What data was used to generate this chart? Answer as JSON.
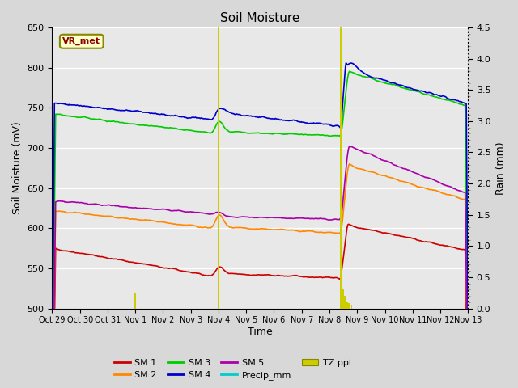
{
  "title": "Soil Moisture",
  "xlabel": "Time",
  "ylabel_left": "Soil Moisture (mV)",
  "ylabel_right": "Rain (mm)",
  "ylim_left": [
    500,
    850
  ],
  "ylim_right": [
    0.0,
    4.5
  ],
  "fig_bg_color": "#d8d8d8",
  "plot_bg_color": "#e8e8e8",
  "annotation_text": "VR_met",
  "colors": {
    "SM1": "#cc0000",
    "SM2": "#ff8800",
    "SM3": "#00cc00",
    "SM4": "#0000cc",
    "SM5": "#aa00aa",
    "Precip_mm": "#00cccc",
    "TZ_ppt": "#cccc00"
  },
  "legend_labels": [
    "SM 1",
    "SM 2",
    "SM 3",
    "SM 4",
    "SM 5",
    "Precip_mm",
    "TZ ppt"
  ],
  "x_tick_labels": [
    "Oct 29",
    "Oct 30",
    "Oct 31",
    "Nov 1",
    "Nov 2",
    "Nov 3",
    "Nov 4",
    "Nov 5",
    "Nov 6",
    "Nov 7",
    "Nov 8",
    "Nov 9",
    "Nov 10",
    "Nov 11",
    "Nov 12",
    "Nov 13"
  ],
  "yticks_left": [
    500,
    550,
    600,
    650,
    700,
    750,
    800,
    850
  ],
  "yticks_right": [
    0.0,
    0.5,
    1.0,
    1.5,
    2.0,
    2.5,
    3.0,
    3.5,
    4.0,
    4.5
  ],
  "linewidth": 1.2,
  "rain_scale": 4.5
}
